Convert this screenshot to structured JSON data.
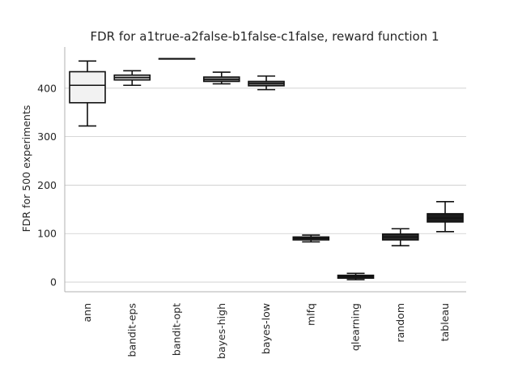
{
  "chart_data": {
    "type": "box",
    "title": "FDR for a1true-a2false-b1false-c1false, reward function 1",
    "xlabel": "",
    "ylabel": "FDR for 500 experiments",
    "ylim": [
      -20,
      485
    ],
    "yticks": [
      0,
      100,
      200,
      300,
      400
    ],
    "grid": "horizontal",
    "categories": [
      "ann",
      "bandit-eps",
      "bandit-opt",
      "bayes-high",
      "bayes-low",
      "mlfq",
      "qlearning",
      "random",
      "tableau"
    ],
    "boxes": [
      {
        "whisker_low": 322,
        "q1": 370,
        "median": 406,
        "q3": 434,
        "whisker_high": 456,
        "fill": "#f2f2f2"
      },
      {
        "whisker_low": 406,
        "q1": 417,
        "median": 422,
        "q3": 427,
        "whisker_high": 436,
        "fill": "#cfcfcf"
      },
      {
        "whisker_low": 461,
        "q1": 461,
        "median": 461,
        "q3": 461,
        "whisker_high": 461,
        "fill": "#ababab"
      },
      {
        "whisker_low": 409,
        "q1": 414,
        "median": 418,
        "q3": 423,
        "whisker_high": 433,
        "fill": "#8a8a8a"
      },
      {
        "whisker_low": 397,
        "q1": 405,
        "median": 410,
        "q3": 414,
        "whisker_high": 425,
        "fill": "#6b6b6b"
      },
      {
        "whisker_low": 83,
        "q1": 87,
        "median": 90,
        "q3": 93,
        "whisker_high": 97,
        "fill": "#4d4d4d"
      },
      {
        "whisker_low": 5,
        "q1": 8,
        "median": 11,
        "q3": 14,
        "whisker_high": 18,
        "fill": "#333333"
      },
      {
        "whisker_low": 75,
        "q1": 87,
        "median": 93,
        "q3": 99,
        "whisker_high": 110,
        "fill": "#2a2a2a"
      },
      {
        "whisker_low": 104,
        "q1": 124,
        "median": 132,
        "q3": 141,
        "whisker_high": 166,
        "fill": "#1c1c1c"
      }
    ],
    "colors": {
      "line": "#111111",
      "grid": "#cccccc",
      "axis": "#b0b0b0",
      "text": "#262626"
    }
  }
}
